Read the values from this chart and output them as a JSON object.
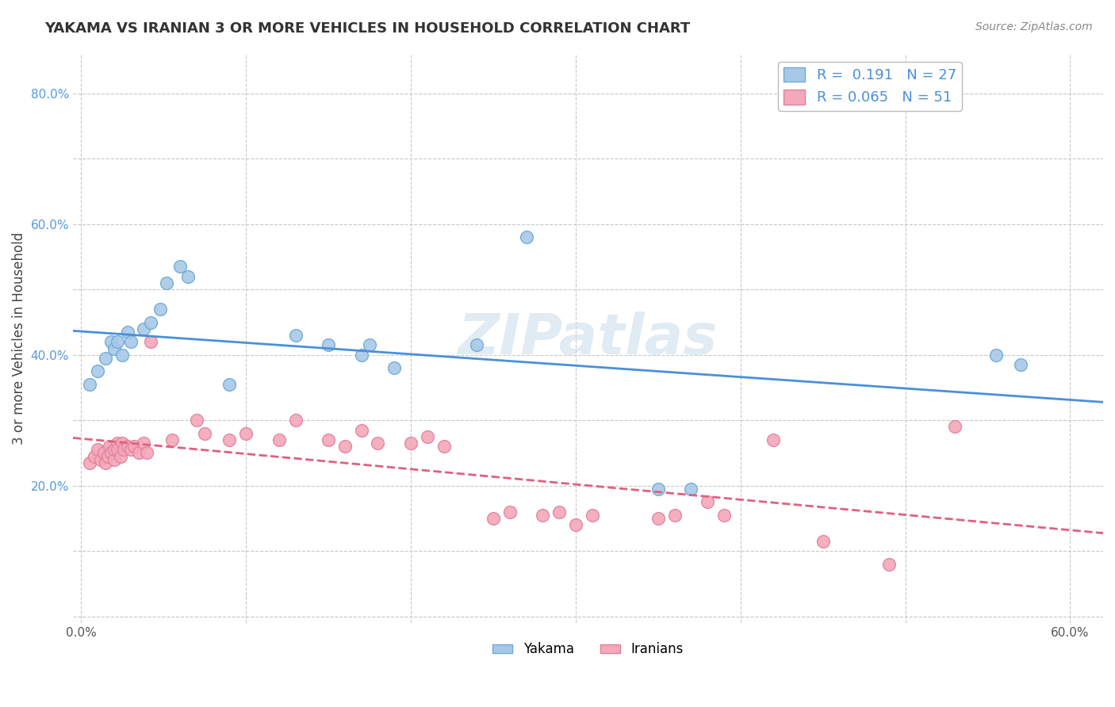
{
  "title": "YAKAMA VS IRANIAN 3 OR MORE VEHICLES IN HOUSEHOLD CORRELATION CHART",
  "source": "Source: ZipAtlas.com",
  "ylabel": "3 or more Vehicles in Household",
  "xlabel": "",
  "watermark": "ZIPatlas",
  "xlim": [
    -0.005,
    0.62
  ],
  "ylim": [
    -0.01,
    0.86
  ],
  "xticks": [
    0.0,
    0.1,
    0.2,
    0.3,
    0.4,
    0.5,
    0.6
  ],
  "xticklabels": [
    "0.0%",
    "",
    "",
    "",
    "",
    "",
    "60.0%"
  ],
  "yticks": [
    0.0,
    0.1,
    0.2,
    0.3,
    0.4,
    0.5,
    0.6,
    0.7,
    0.8
  ],
  "yticklabels": [
    "",
    "",
    "20.0%",
    "",
    "40.0%",
    "",
    "60.0%",
    "",
    "80.0%"
  ],
  "legend_entries": [
    {
      "label": "Yakama",
      "R": "0.191",
      "N": "27",
      "color": "#a8c8e8"
    },
    {
      "label": "Iranians",
      "R": "0.065",
      "N": "51",
      "color": "#f4a8b8"
    }
  ],
  "yakama_scatter": [
    [
      0.005,
      0.355
    ],
    [
      0.01,
      0.375
    ],
    [
      0.015,
      0.395
    ],
    [
      0.018,
      0.42
    ],
    [
      0.02,
      0.41
    ],
    [
      0.022,
      0.42
    ],
    [
      0.025,
      0.4
    ],
    [
      0.028,
      0.435
    ],
    [
      0.03,
      0.42
    ],
    [
      0.038,
      0.44
    ],
    [
      0.042,
      0.45
    ],
    [
      0.048,
      0.47
    ],
    [
      0.052,
      0.51
    ],
    [
      0.06,
      0.535
    ],
    [
      0.065,
      0.52
    ],
    [
      0.09,
      0.355
    ],
    [
      0.13,
      0.43
    ],
    [
      0.15,
      0.415
    ],
    [
      0.17,
      0.4
    ],
    [
      0.175,
      0.415
    ],
    [
      0.19,
      0.38
    ],
    [
      0.24,
      0.415
    ],
    [
      0.27,
      0.58
    ],
    [
      0.35,
      0.195
    ],
    [
      0.37,
      0.195
    ],
    [
      0.555,
      0.4
    ],
    [
      0.57,
      0.385
    ]
  ],
  "iranian_scatter": [
    [
      0.005,
      0.235
    ],
    [
      0.008,
      0.245
    ],
    [
      0.01,
      0.255
    ],
    [
      0.012,
      0.24
    ],
    [
      0.014,
      0.25
    ],
    [
      0.015,
      0.235
    ],
    [
      0.016,
      0.245
    ],
    [
      0.017,
      0.26
    ],
    [
      0.018,
      0.25
    ],
    [
      0.02,
      0.24
    ],
    [
      0.02,
      0.255
    ],
    [
      0.022,
      0.265
    ],
    [
      0.022,
      0.255
    ],
    [
      0.024,
      0.245
    ],
    [
      0.025,
      0.265
    ],
    [
      0.026,
      0.255
    ],
    [
      0.028,
      0.26
    ],
    [
      0.03,
      0.255
    ],
    [
      0.032,
      0.26
    ],
    [
      0.035,
      0.25
    ],
    [
      0.038,
      0.265
    ],
    [
      0.04,
      0.25
    ],
    [
      0.042,
      0.42
    ],
    [
      0.055,
      0.27
    ],
    [
      0.07,
      0.3
    ],
    [
      0.075,
      0.28
    ],
    [
      0.09,
      0.27
    ],
    [
      0.1,
      0.28
    ],
    [
      0.12,
      0.27
    ],
    [
      0.13,
      0.3
    ],
    [
      0.15,
      0.27
    ],
    [
      0.16,
      0.26
    ],
    [
      0.17,
      0.285
    ],
    [
      0.18,
      0.265
    ],
    [
      0.2,
      0.265
    ],
    [
      0.21,
      0.275
    ],
    [
      0.22,
      0.26
    ],
    [
      0.25,
      0.15
    ],
    [
      0.26,
      0.16
    ],
    [
      0.28,
      0.155
    ],
    [
      0.29,
      0.16
    ],
    [
      0.3,
      0.14
    ],
    [
      0.31,
      0.155
    ],
    [
      0.35,
      0.15
    ],
    [
      0.36,
      0.155
    ],
    [
      0.38,
      0.175
    ],
    [
      0.39,
      0.155
    ],
    [
      0.42,
      0.27
    ],
    [
      0.45,
      0.115
    ],
    [
      0.49,
      0.08
    ],
    [
      0.53,
      0.29
    ]
  ],
  "yakama_line_color": "#4a90d9",
  "iranian_line_color": "#e06080",
  "scatter_yakama_color": "#a8c8e8",
  "scatter_iranian_color": "#f4a8b8",
  "scatter_edge_yakama": "#6aaad4",
  "scatter_edge_iranian": "#e080a0",
  "background_color": "#ffffff",
  "grid_color": "#c8c8c8"
}
